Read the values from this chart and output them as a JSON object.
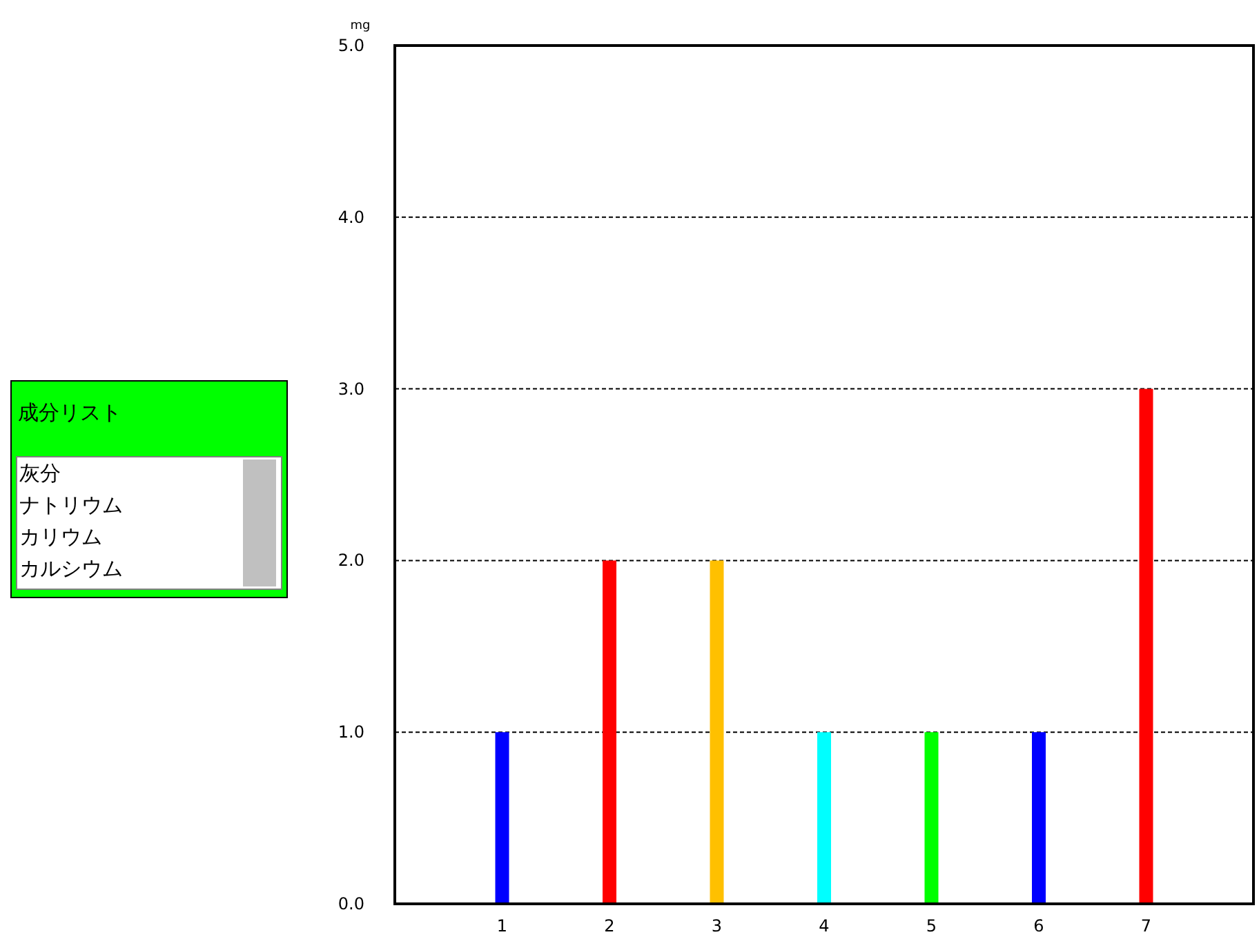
{
  "chart_data": [
    {
      "type": "bar",
      "ylabel": "mg",
      "categories": [
        "1",
        "2",
        "3",
        "4",
        "5",
        "6",
        "7"
      ],
      "values": [
        1,
        2,
        2,
        1,
        1,
        1,
        3
      ],
      "colors": [
        "#0000ff",
        "#ff0000",
        "#ffc000",
        "#00ffff",
        "#00ff00",
        "#0000ff",
        "#ff0000"
      ],
      "ylim": [
        0,
        5
      ],
      "yticks": [
        {
          "value": 0,
          "label": "0.0"
        },
        {
          "value": 1,
          "label": "1.0"
        },
        {
          "value": 2,
          "label": "2.0"
        },
        {
          "value": 3,
          "label": "3.0"
        },
        {
          "value": 4,
          "label": "4.0"
        },
        {
          "value": 5,
          "label": "5.0"
        }
      ],
      "grid": "y"
    },
    {
      "type": "other",
      "title": "成分リスト",
      "annotations": [
        "灰分",
        "ナトリウム",
        "カリウム",
        "カルシウム"
      ]
    }
  ]
}
